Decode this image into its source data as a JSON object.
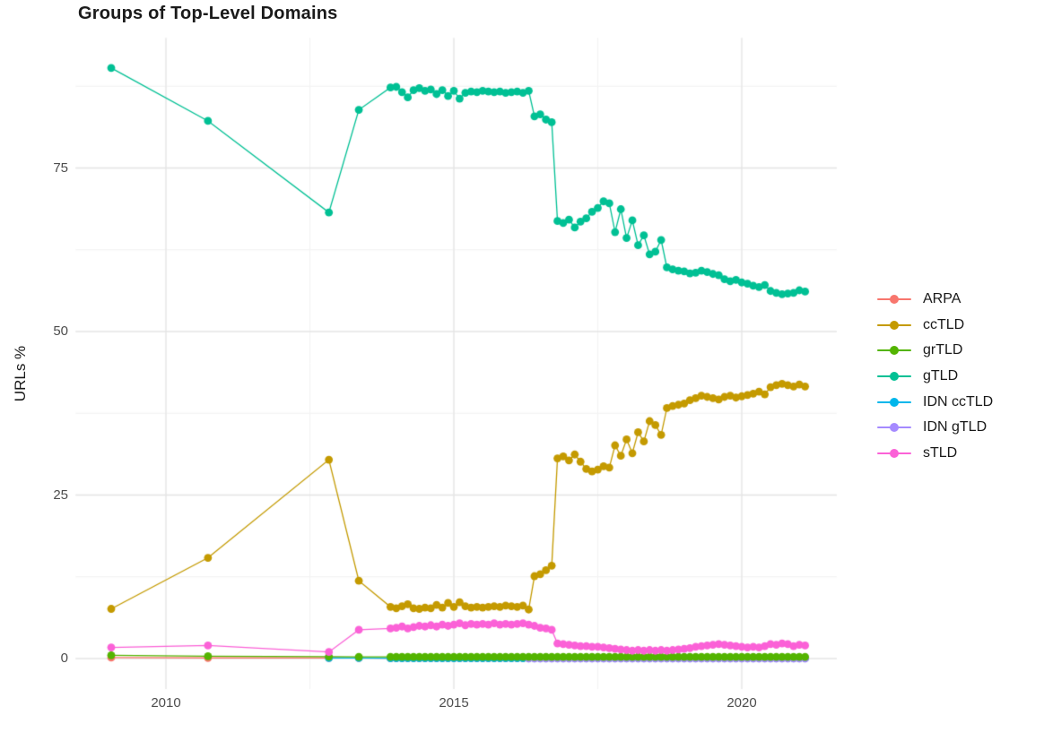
{
  "header": {
    "title": "Groups of Top-Level Domains"
  },
  "legend": {
    "items": [
      {
        "label": "ARPA",
        "color": "#F8766D"
      },
      {
        "label": "ccTLD",
        "color": "#C49A00"
      },
      {
        "label": "grTLD",
        "color": "#53B400"
      },
      {
        "label": "gTLD",
        "color": "#00C094"
      },
      {
        "label": "IDN ccTLD",
        "color": "#00B6EB"
      },
      {
        "label": "IDN gTLD",
        "color": "#A58AFF"
      },
      {
        "label": "sTLD",
        "color": "#FB61D7"
      }
    ]
  },
  "chart_data": {
    "type": "line",
    "title": "Groups of Top-Level Domains",
    "xlabel": "",
    "ylabel": "URLs %",
    "xlim": [
      2008.43,
      2021.65
    ],
    "ylim": [
      -4.66,
      94.9
    ],
    "grid": true,
    "legend_position": "right",
    "background": "#ffffff",
    "grid_major_color": "#e4e4e4",
    "grid_minor_color": "#f2f2f2",
    "xticks": {
      "major": [
        2010,
        2015,
        2020
      ],
      "minor": [
        2012.5,
        2017.5
      ],
      "labels": [
        "2010",
        "2015",
        "2020"
      ]
    },
    "yticks": {
      "major": [
        0,
        25,
        50,
        75
      ],
      "minor": [
        12.5,
        37.5,
        62.5,
        87.5
      ],
      "labels": [
        "0",
        "25",
        "50",
        "75"
      ]
    },
    "series": [
      {
        "name": "ARPA",
        "color": "#F8766D",
        "points_sparse": [
          [
            2009.05,
            0.15
          ],
          [
            2010.73,
            0.1
          ],
          [
            2012.83,
            0.1
          ],
          [
            2013.35,
            0.08
          ]
        ],
        "points_dense": {
          "x_start": 2013.9,
          "x_step": 0.1,
          "count": 73,
          "fill": 0.05
        }
      },
      {
        "name": "IDN ccTLD",
        "color": "#00B6EB",
        "points_sparse": [
          [
            2012.83,
            0.1
          ],
          [
            2013.35,
            0.08
          ]
        ],
        "points_dense": {
          "x_start": 2013.9,
          "x_step": 0.1,
          "count": 73,
          "fill": 0.05
        }
      },
      {
        "name": "IDN gTLD",
        "color": "#A58AFF",
        "points_sparse": [],
        "points_dense": {
          "x_start": 2016.3,
          "x_step": 0.1,
          "count": 49,
          "fill": 0.0
        }
      },
      {
        "name": "ccTLD",
        "color": "#C49A00",
        "points_sparse": [
          [
            2009.05,
            7.6
          ],
          [
            2010.73,
            15.4
          ],
          [
            2012.83,
            30.4
          ],
          [
            2013.35,
            11.9
          ]
        ],
        "points_dense": {
          "x_start": 2013.9,
          "x_step": 0.1,
          "y": [
            7.9,
            7.7,
            8.0,
            8.3,
            7.7,
            7.6,
            7.8,
            7.7,
            8.2,
            7.8,
            8.5,
            7.9,
            8.6,
            8.0,
            7.8,
            7.9,
            7.8,
            7.9,
            8.0,
            7.9,
            8.1,
            8.0,
            7.9,
            8.1,
            7.5,
            12.6,
            12.9,
            13.5,
            14.2,
            30.6,
            30.9,
            30.3,
            31.2,
            30.1,
            29.0,
            28.6,
            28.9,
            29.4,
            29.2,
            32.6,
            31.0,
            33.5,
            31.4,
            34.6,
            33.2,
            36.3,
            35.7,
            34.2,
            38.3,
            38.6,
            38.8,
            39.0,
            39.5,
            39.8,
            40.2,
            40.0,
            39.8,
            39.6,
            40.0,
            40.2,
            39.9,
            40.1,
            40.3,
            40.5,
            40.8,
            40.4,
            41.5,
            41.8,
            42.0,
            41.8,
            41.6,
            41.9,
            41.6
          ]
        }
      },
      {
        "name": "grTLD",
        "color": "#53B400",
        "points_sparse": [
          [
            2009.05,
            0.5
          ],
          [
            2010.73,
            0.35
          ],
          [
            2012.83,
            0.3
          ],
          [
            2013.35,
            0.25
          ]
        ],
        "points_dense": {
          "x_start": 2013.9,
          "x_step": 0.1,
          "count": 73,
          "fill": 0.25
        }
      },
      {
        "name": "gTLD",
        "color": "#00C094",
        "points_sparse": [
          [
            2009.05,
            90.3
          ],
          [
            2010.73,
            82.2
          ],
          [
            2012.83,
            68.2
          ],
          [
            2013.35,
            83.9
          ]
        ],
        "points_dense": {
          "x_start": 2013.9,
          "x_step": 0.1,
          "y": [
            87.3,
            87.4,
            86.6,
            85.8,
            86.9,
            87.2,
            86.8,
            87.0,
            86.3,
            86.9,
            86.0,
            86.8,
            85.6,
            86.5,
            86.7,
            86.6,
            86.8,
            86.7,
            86.6,
            86.7,
            86.5,
            86.6,
            86.7,
            86.5,
            86.8,
            82.9,
            83.2,
            82.4,
            82.0,
            66.9,
            66.6,
            67.1,
            65.9,
            66.8,
            67.3,
            68.3,
            68.9,
            69.9,
            69.6,
            65.2,
            68.7,
            64.3,
            67.0,
            63.2,
            64.7,
            61.8,
            62.2,
            64.0,
            59.8,
            59.5,
            59.3,
            59.2,
            58.9,
            59.0,
            59.3,
            59.1,
            58.8,
            58.6,
            58.0,
            57.7,
            57.9,
            57.5,
            57.3,
            57.0,
            56.8,
            57.1,
            56.2,
            55.9,
            55.7,
            55.8,
            55.9,
            56.3,
            56.1
          ]
        }
      },
      {
        "name": "sTLD",
        "color": "#FB61D7",
        "points_sparse": [
          [
            2009.05,
            1.7
          ],
          [
            2010.73,
            2.0
          ],
          [
            2012.83,
            1.0
          ],
          [
            2013.35,
            4.4
          ]
        ],
        "points_dense": {
          "x_start": 2013.9,
          "x_step": 0.1,
          "y": [
            4.6,
            4.7,
            4.9,
            4.6,
            4.8,
            5.0,
            4.9,
            5.1,
            4.9,
            5.2,
            5.0,
            5.2,
            5.4,
            5.1,
            5.3,
            5.2,
            5.3,
            5.2,
            5.4,
            5.2,
            5.3,
            5.2,
            5.3,
            5.4,
            5.2,
            5.0,
            4.7,
            4.6,
            4.4,
            2.3,
            2.2,
            2.1,
            2.0,
            1.9,
            1.9,
            1.8,
            1.8,
            1.7,
            1.6,
            1.5,
            1.4,
            1.3,
            1.2,
            1.3,
            1.2,
            1.3,
            1.2,
            1.3,
            1.2,
            1.3,
            1.4,
            1.5,
            1.6,
            1.8,
            1.9,
            2.0,
            2.1,
            2.2,
            2.1,
            2.0,
            1.9,
            1.8,
            1.7,
            1.8,
            1.7,
            1.9,
            2.2,
            2.1,
            2.3,
            2.2,
            1.9,
            2.1,
            2.0
          ]
        }
      }
    ]
  }
}
